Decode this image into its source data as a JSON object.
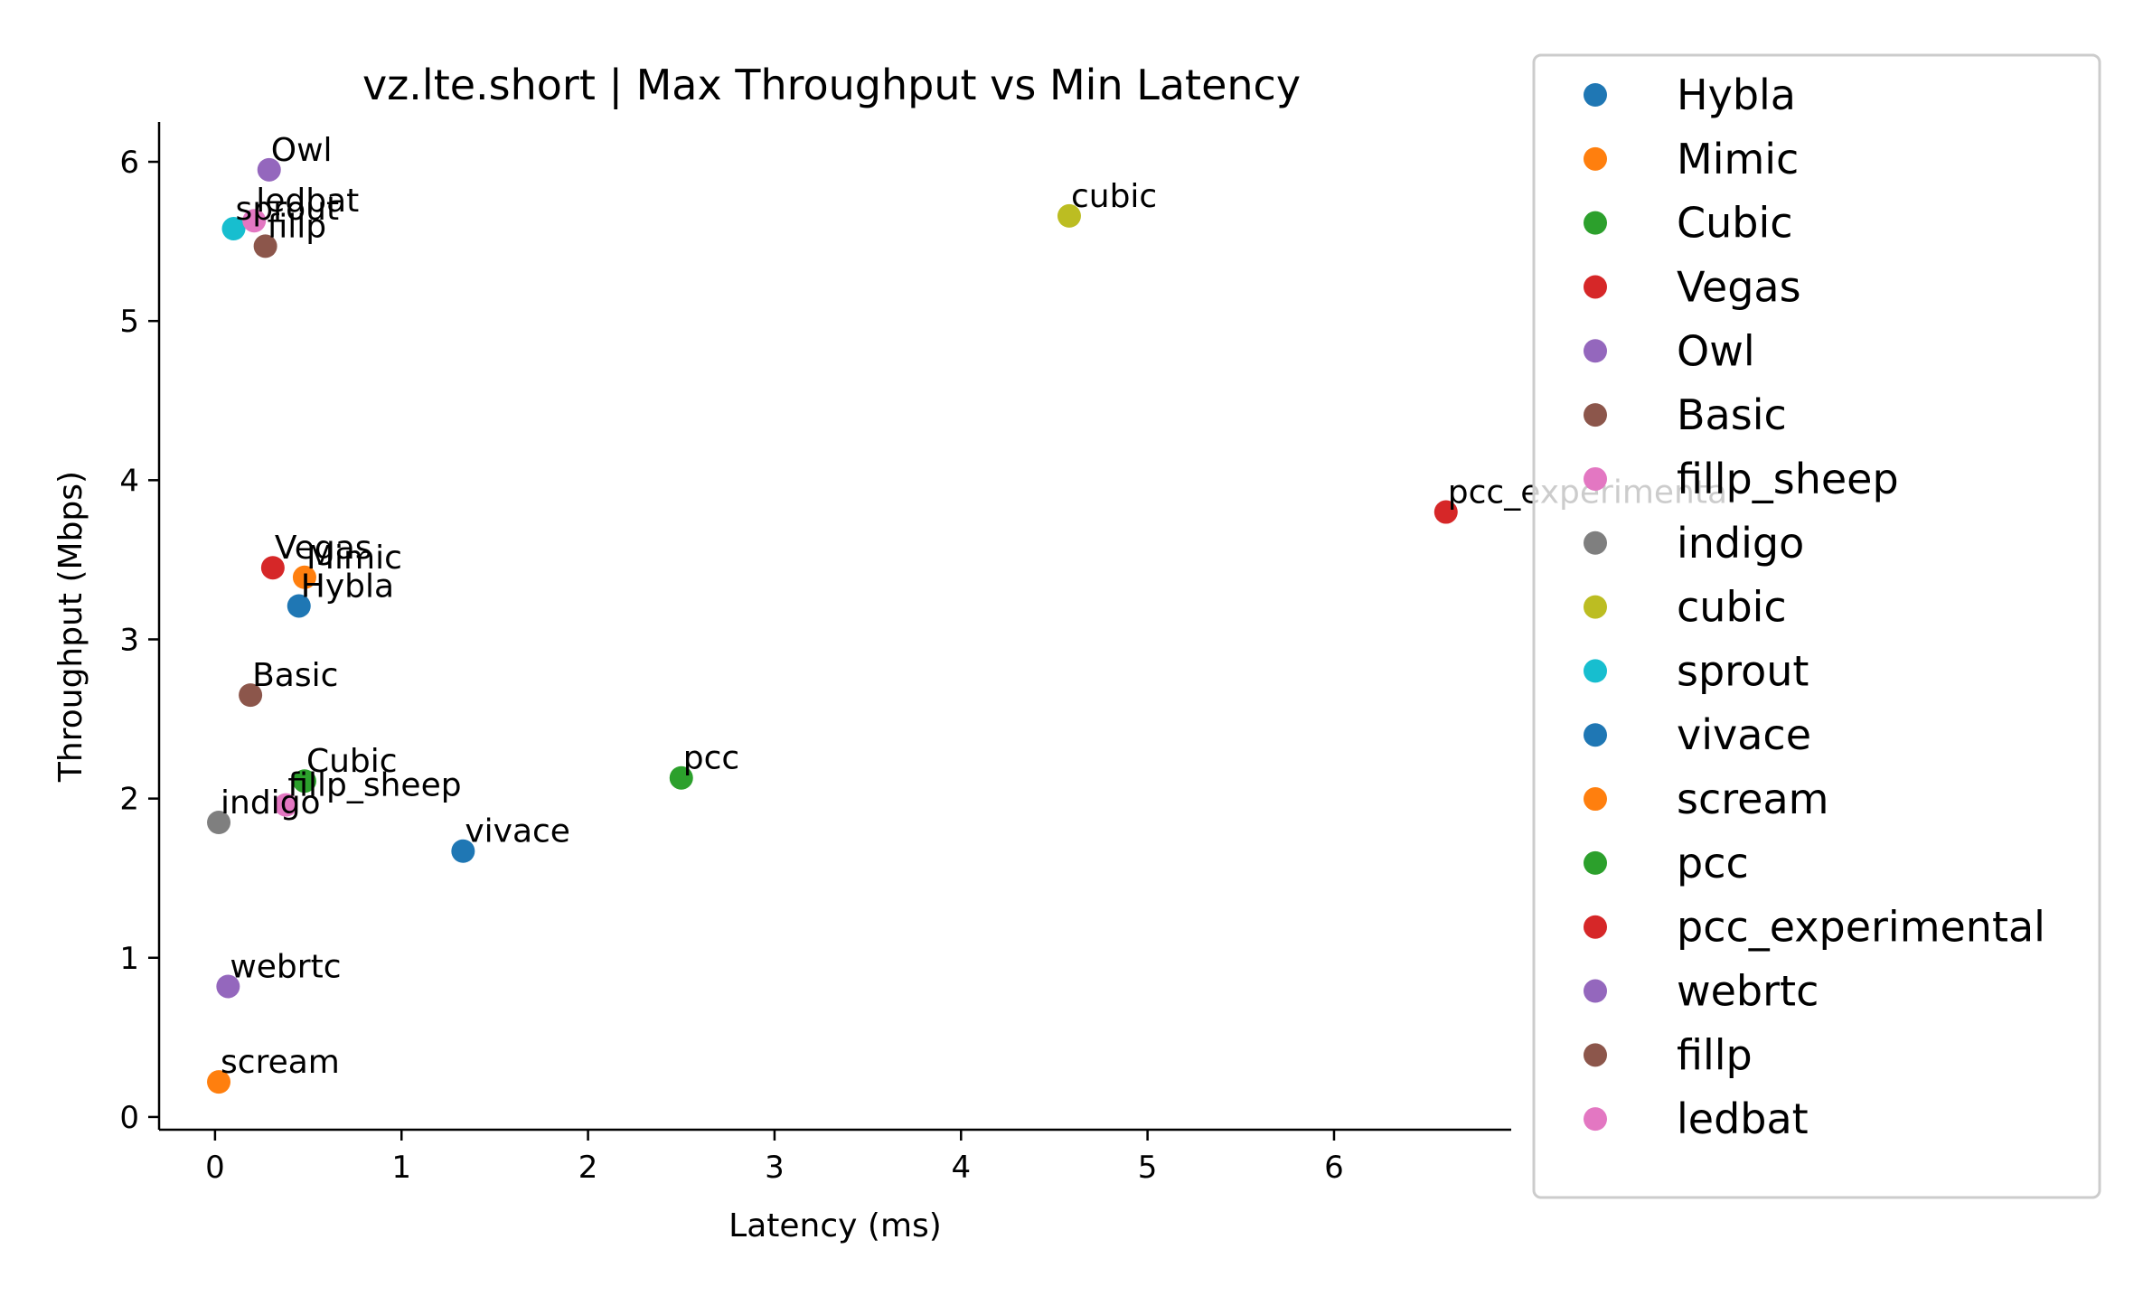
{
  "chart_data": {
    "type": "scatter",
    "title": "vz.lte.short | Max Throughput vs Min Latency",
    "xlabel": "Latency (ms)",
    "ylabel": "Throughput (Mbps)",
    "xlim": [
      -0.3,
      6.95
    ],
    "ylim": [
      -0.08,
      6.25
    ],
    "xticks": [
      "0",
      "1",
      "2",
      "3",
      "4",
      "5",
      "6"
    ],
    "yticks": [
      "0",
      "1",
      "2",
      "3",
      "4",
      "5",
      "6"
    ],
    "legend_position": "right-outside",
    "grid": false,
    "series": [
      {
        "name": "Hybla",
        "color": "#1f77b4",
        "x": 0.45,
        "y": 3.21
      },
      {
        "name": "Mimic",
        "color": "#ff7f0e",
        "x": 0.48,
        "y": 3.39
      },
      {
        "name": "Cubic",
        "color": "#2ca02c",
        "x": 0.48,
        "y": 2.11
      },
      {
        "name": "Vegas",
        "color": "#d62728",
        "x": 0.31,
        "y": 3.45
      },
      {
        "name": "Owl",
        "color": "#9467bd",
        "x": 0.29,
        "y": 5.95
      },
      {
        "name": "Basic",
        "color": "#8c564b",
        "x": 0.19,
        "y": 2.65
      },
      {
        "name": "fillp_sheep",
        "color": "#e377c2",
        "x": 0.38,
        "y": 1.96
      },
      {
        "name": "indigo",
        "color": "#7f7f7f",
        "x": 0.02,
        "y": 1.85
      },
      {
        "name": "cubic",
        "color": "#bcbd22",
        "x": 4.58,
        "y": 5.66
      },
      {
        "name": "sprout",
        "color": "#17becf",
        "x": 0.1,
        "y": 5.58
      },
      {
        "name": "vivace",
        "color": "#1f77b4",
        "x": 1.33,
        "y": 1.67
      },
      {
        "name": "scream",
        "color": "#ff7f0e",
        "x": 0.02,
        "y": 0.22
      },
      {
        "name": "pcc",
        "color": "#2ca02c",
        "x": 2.5,
        "y": 2.13
      },
      {
        "name": "pcc_experimental",
        "color": "#d62728",
        "x": 6.6,
        "y": 3.8
      },
      {
        "name": "webrtc",
        "color": "#9467bd",
        "x": 0.07,
        "y": 0.82
      },
      {
        "name": "fillp",
        "color": "#8c564b",
        "x": 0.27,
        "y": 5.47
      },
      {
        "name": "ledbat",
        "color": "#e377c2",
        "x": 0.21,
        "y": 5.63
      }
    ]
  }
}
